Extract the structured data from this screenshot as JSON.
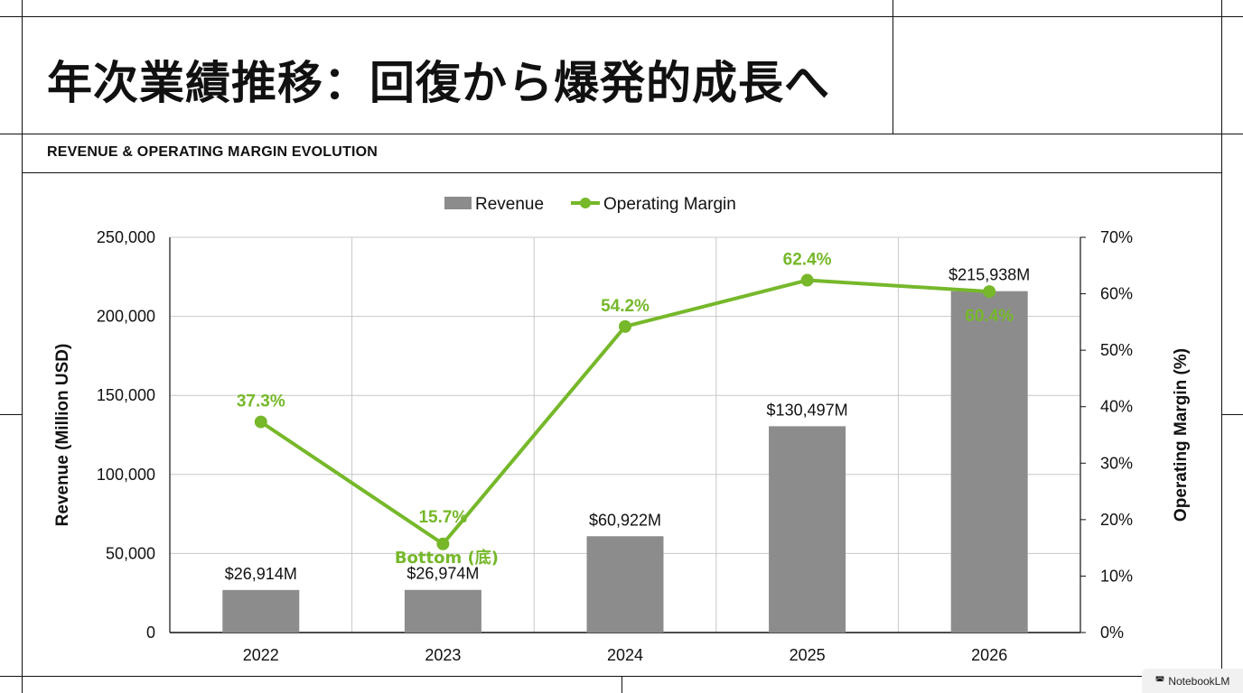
{
  "page": {
    "title": "年次業績推移：回復から爆発的成長へ",
    "section_label": "REVENUE & OPERATING MARGIN EVOLUTION",
    "brand": "NotebookLM",
    "brand_icon": "notebooklm-icon"
  },
  "colors": {
    "bar": "#8c8c8c",
    "line": "#76b82a",
    "grid": "#c8c8c8",
    "text": "#111111"
  },
  "chart_data": {
    "type": "bar",
    "categories": [
      "2022",
      "2023",
      "2024",
      "2025",
      "2026"
    ],
    "series": [
      {
        "name": "Revenue",
        "type": "bar",
        "axis": "left",
        "values": [
          26914,
          26974,
          60922,
          130497,
          215938
        ],
        "labels": [
          "$26,914M",
          "$26,974M",
          "$60,922M",
          "$130,497M",
          "$215,938M"
        ]
      },
      {
        "name": "Operating Margin",
        "type": "line",
        "axis": "right",
        "values": [
          37.3,
          15.7,
          54.2,
          62.4,
          60.4
        ],
        "labels": [
          "37.3%",
          "15.7%",
          "54.2%",
          "62.4%",
          "60.4%"
        ]
      }
    ],
    "annotations": [
      {
        "category": "2023",
        "text": "Bottom (底)"
      }
    ],
    "ylabel": "Revenue (Million USD)",
    "y2label": "Operating Margin (%)",
    "ylim": [
      0,
      250000
    ],
    "y2lim": [
      0,
      70
    ],
    "yticks": [
      "0",
      "50,000",
      "100,000",
      "150,000",
      "200,000",
      "250,000"
    ],
    "y2ticks": [
      "0%",
      "10%",
      "20%",
      "30%",
      "40%",
      "50%",
      "60%",
      "70%"
    ],
    "legend": "top-center",
    "grid": true
  }
}
